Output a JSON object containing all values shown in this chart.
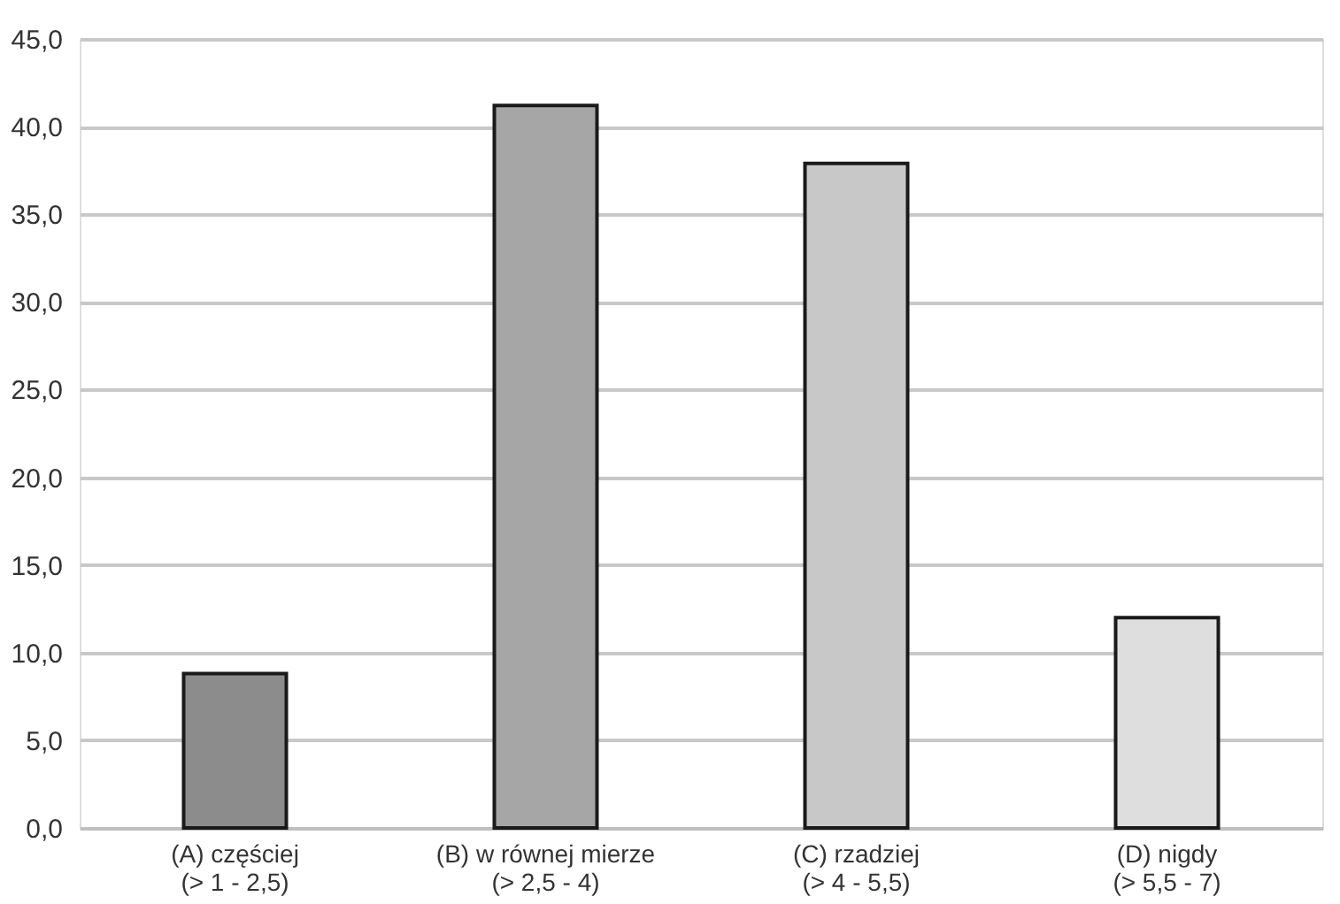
{
  "chart_data": {
    "type": "bar",
    "categories": [
      "(A) częściej\n(> 1 -  2,5)",
      "(B) w równej mierze\n(> 2,5 -  4)",
      "(C) rzadziej\n(> 4 - 5,5)",
      "(D) nigdy\n(> 5,5 - 7)"
    ],
    "values": [
      8.8,
      41.2,
      37.9,
      12.0
    ],
    "colors": [
      "#8c8c8c",
      "#a6a6a6",
      "#c8c8c8",
      "#dedede"
    ],
    "ylim": [
      0,
      45
    ],
    "yticks": [
      {
        "value": 0,
        "label": "0,0"
      },
      {
        "value": 5,
        "label": "5,0"
      },
      {
        "value": 10,
        "label": "10,0"
      },
      {
        "value": 15,
        "label": "15,0"
      },
      {
        "value": 20,
        "label": "20,0"
      },
      {
        "value": 25,
        "label": "25,0"
      },
      {
        "value": 30,
        "label": "30,0"
      },
      {
        "value": 35,
        "label": "35,0"
      },
      {
        "value": 40,
        "label": "40,0"
      },
      {
        "value": 45,
        "label": "45,0"
      }
    ],
    "grid": "y",
    "legend": false
  }
}
